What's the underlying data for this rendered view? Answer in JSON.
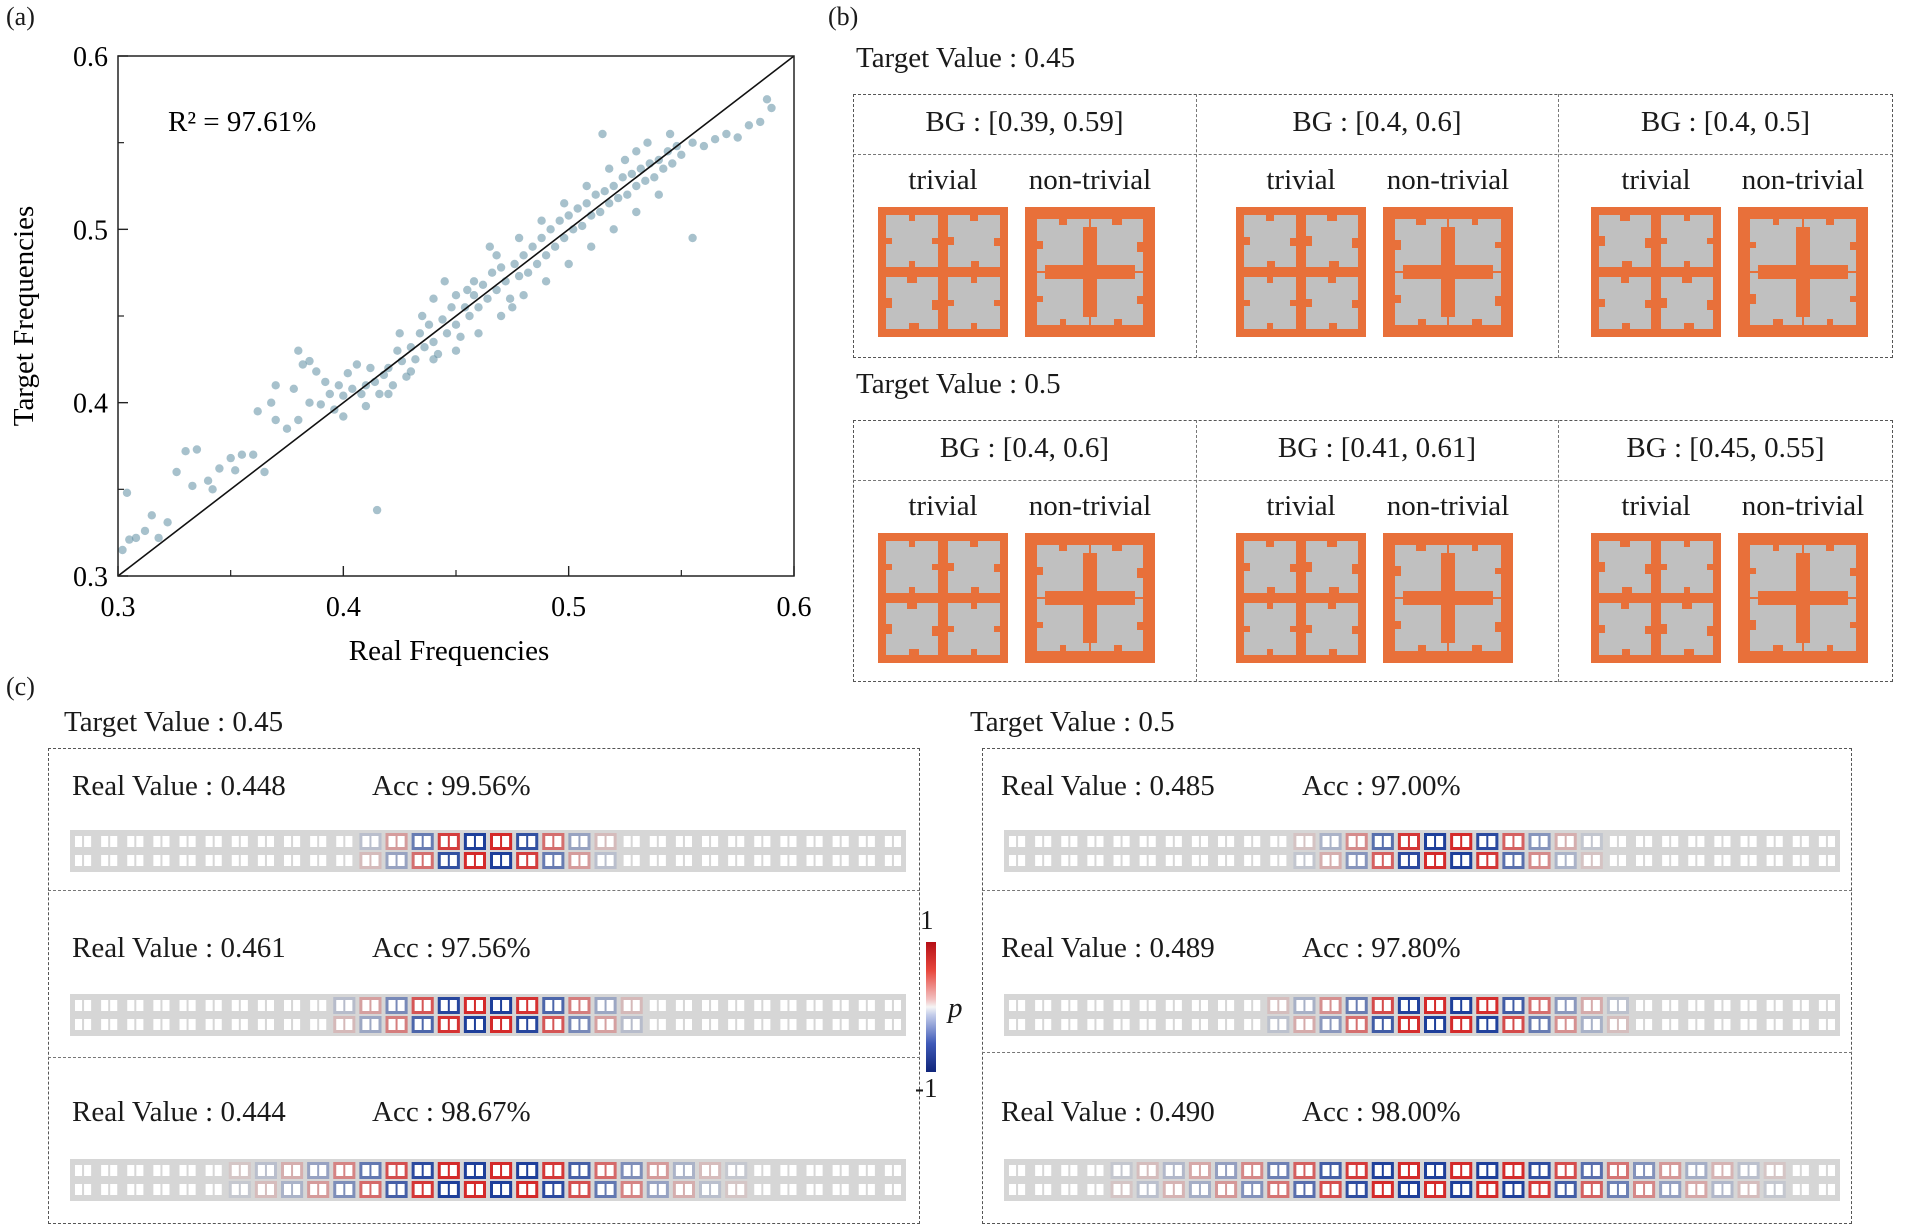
{
  "panel_labels": {
    "a": "(a)",
    "b": "(b)",
    "c": "(c)"
  },
  "colors": {
    "point": "#5e8ea2",
    "diag": "#111111",
    "cell_orange": "#e8703a",
    "cell_gray": "#c0c0c0",
    "field_red": "#d42a2a",
    "field_blue": "#1e3f9a"
  },
  "chart_data": {
    "type": "scatter",
    "title": "",
    "xlabel": "Real Frequencies",
    "ylabel": "Target Frequencies",
    "xlim": [
      0.3,
      0.6
    ],
    "ylim": [
      0.3,
      0.6
    ],
    "xticks": [
      0.3,
      0.4,
      0.5,
      0.6
    ],
    "yticks": [
      0.3,
      0.4,
      0.5,
      0.6
    ],
    "xtick_labels": [
      "0.3",
      "0.4",
      "0.5",
      "0.6"
    ],
    "ytick_labels": [
      "0.3",
      "0.4",
      "0.5",
      "0.6"
    ],
    "annotation": "R² = 97.61%",
    "reference_line": "y = x",
    "grid": false,
    "points": [
      [
        0.302,
        0.315
      ],
      [
        0.305,
        0.321
      ],
      [
        0.308,
        0.322
      ],
      [
        0.304,
        0.348
      ],
      [
        0.312,
        0.326
      ],
      [
        0.318,
        0.322
      ],
      [
        0.315,
        0.335
      ],
      [
        0.322,
        0.331
      ],
      [
        0.326,
        0.36
      ],
      [
        0.33,
        0.372
      ],
      [
        0.335,
        0.373
      ],
      [
        0.333,
        0.352
      ],
      [
        0.34,
        0.355
      ],
      [
        0.345,
        0.362
      ],
      [
        0.342,
        0.35
      ],
      [
        0.35,
        0.368
      ],
      [
        0.355,
        0.37
      ],
      [
        0.352,
        0.361
      ],
      [
        0.36,
        0.37
      ],
      [
        0.365,
        0.36
      ],
      [
        0.362,
        0.395
      ],
      [
        0.37,
        0.39
      ],
      [
        0.368,
        0.4
      ],
      [
        0.375,
        0.385
      ],
      [
        0.38,
        0.39
      ],
      [
        0.378,
        0.408
      ],
      [
        0.382,
        0.422
      ],
      [
        0.385,
        0.424
      ],
      [
        0.388,
        0.418
      ],
      [
        0.392,
        0.412
      ],
      [
        0.39,
        0.399
      ],
      [
        0.394,
        0.405
      ],
      [
        0.396,
        0.396
      ],
      [
        0.398,
        0.41
      ],
      [
        0.4,
        0.404
      ],
      [
        0.402,
        0.417
      ],
      [
        0.404,
        0.408
      ],
      [
        0.406,
        0.422
      ],
      [
        0.408,
        0.405
      ],
      [
        0.41,
        0.41
      ],
      [
        0.412,
        0.42
      ],
      [
        0.414,
        0.412
      ],
      [
        0.416,
        0.405
      ],
      [
        0.418,
        0.416
      ],
      [
        0.42,
        0.42
      ],
      [
        0.422,
        0.41
      ],
      [
        0.424,
        0.43
      ],
      [
        0.426,
        0.424
      ],
      [
        0.428,
        0.415
      ],
      [
        0.43,
        0.432
      ],
      [
        0.432,
        0.425
      ],
      [
        0.434,
        0.44
      ],
      [
        0.436,
        0.432
      ],
      [
        0.438,
        0.445
      ],
      [
        0.44,
        0.435
      ],
      [
        0.442,
        0.428
      ],
      [
        0.444,
        0.448
      ],
      [
        0.446,
        0.44
      ],
      [
        0.448,
        0.455
      ],
      [
        0.45,
        0.445
      ],
      [
        0.452,
        0.438
      ],
      [
        0.454,
        0.455
      ],
      [
        0.456,
        0.45
      ],
      [
        0.458,
        0.462
      ],
      [
        0.46,
        0.455
      ],
      [
        0.462,
        0.468
      ],
      [
        0.464,
        0.46
      ],
      [
        0.466,
        0.475
      ],
      [
        0.468,
        0.465
      ],
      [
        0.47,
        0.478
      ],
      [
        0.472,
        0.47
      ],
      [
        0.474,
        0.46
      ],
      [
        0.476,
        0.48
      ],
      [
        0.478,
        0.473
      ],
      [
        0.48,
        0.485
      ],
      [
        0.482,
        0.475
      ],
      [
        0.484,
        0.49
      ],
      [
        0.486,
        0.48
      ],
      [
        0.488,
        0.495
      ],
      [
        0.49,
        0.485
      ],
      [
        0.492,
        0.5
      ],
      [
        0.494,
        0.49
      ],
      [
        0.496,
        0.505
      ],
      [
        0.498,
        0.495
      ],
      [
        0.5,
        0.508
      ],
      [
        0.502,
        0.5
      ],
      [
        0.504,
        0.512
      ],
      [
        0.506,
        0.502
      ],
      [
        0.508,
        0.515
      ],
      [
        0.51,
        0.508
      ],
      [
        0.512,
        0.52
      ],
      [
        0.514,
        0.51
      ],
      [
        0.516,
        0.522
      ],
      [
        0.518,
        0.515
      ],
      [
        0.52,
        0.525
      ],
      [
        0.522,
        0.518
      ],
      [
        0.524,
        0.53
      ],
      [
        0.526,
        0.52
      ],
      [
        0.528,
        0.532
      ],
      [
        0.53,
        0.525
      ],
      [
        0.532,
        0.535
      ],
      [
        0.534,
        0.528
      ],
      [
        0.536,
        0.538
      ],
      [
        0.538,
        0.53
      ],
      [
        0.54,
        0.54
      ],
      [
        0.542,
        0.535
      ],
      [
        0.544,
        0.545
      ],
      [
        0.546,
        0.538
      ],
      [
        0.548,
        0.548
      ],
      [
        0.55,
        0.543
      ],
      [
        0.555,
        0.55
      ],
      [
        0.56,
        0.548
      ],
      [
        0.565,
        0.552
      ],
      [
        0.57,
        0.555
      ],
      [
        0.575,
        0.553
      ],
      [
        0.58,
        0.56
      ],
      [
        0.585,
        0.562
      ],
      [
        0.59,
        0.57
      ],
      [
        0.588,
        0.575
      ],
      [
        0.415,
        0.338
      ],
      [
        0.555,
        0.495
      ],
      [
        0.44,
        0.46
      ],
      [
        0.45,
        0.462
      ],
      [
        0.385,
        0.4
      ],
      [
        0.37,
        0.41
      ],
      [
        0.38,
        0.43
      ],
      [
        0.425,
        0.44
      ],
      [
        0.458,
        0.47
      ],
      [
        0.468,
        0.485
      ],
      [
        0.478,
        0.495
      ],
      [
        0.488,
        0.505
      ],
      [
        0.498,
        0.515
      ],
      [
        0.508,
        0.525
      ],
      [
        0.518,
        0.535
      ],
      [
        0.515,
        0.555
      ],
      [
        0.525,
        0.54
      ],
      [
        0.53,
        0.545
      ],
      [
        0.535,
        0.55
      ],
      [
        0.545,
        0.555
      ],
      [
        0.4,
        0.392
      ],
      [
        0.41,
        0.398
      ],
      [
        0.42,
        0.405
      ],
      [
        0.43,
        0.418
      ],
      [
        0.44,
        0.425
      ],
      [
        0.45,
        0.43
      ],
      [
        0.46,
        0.44
      ],
      [
        0.47,
        0.45
      ],
      [
        0.48,
        0.462
      ],
      [
        0.49,
        0.47
      ],
      [
        0.5,
        0.48
      ],
      [
        0.51,
        0.49
      ],
      [
        0.52,
        0.5
      ],
      [
        0.53,
        0.51
      ],
      [
        0.54,
        0.52
      ],
      [
        0.475,
        0.455
      ],
      [
        0.455,
        0.465
      ],
      [
        0.435,
        0.45
      ],
      [
        0.445,
        0.47
      ],
      [
        0.465,
        0.49
      ]
    ]
  },
  "panel_b": {
    "sections": [
      {
        "target": "Target Value : 0.45",
        "groups": [
          {
            "bg": "BG : [0.39, 0.59]",
            "trivial": "trivial",
            "nontrivial": "non-trivial"
          },
          {
            "bg": "BG : [0.4, 0.6]",
            "trivial": "trivial",
            "nontrivial": "non-trivial"
          },
          {
            "bg": "BG : [0.4, 0.5]",
            "trivial": "trivial",
            "nontrivial": "non-trivial"
          }
        ]
      },
      {
        "target": "Target Value : 0.5",
        "groups": [
          {
            "bg": "BG : [0.4, 0.6]",
            "trivial": "trivial",
            "nontrivial": "non-trivial"
          },
          {
            "bg": "BG : [0.41, 0.61]",
            "trivial": "trivial",
            "nontrivial": "non-trivial"
          },
          {
            "bg": "BG : [0.45, 0.55]",
            "trivial": "trivial",
            "nontrivial": "non-trivial"
          }
        ]
      }
    ]
  },
  "panel_c": {
    "left": {
      "target": "Target Value : 0.45",
      "rows": [
        {
          "real": "Real Value : 0.448",
          "acc": "Acc : 99.56%"
        },
        {
          "real": "Real Value : 0.461",
          "acc": "Acc : 97.56%"
        },
        {
          "real": "Real Value : 0.444",
          "acc": "Acc : 98.67%"
        }
      ]
    },
    "right": {
      "target": "Target Value : 0.5",
      "rows": [
        {
          "real": "Real Value : 0.485",
          "acc": "Acc : 97.00%"
        },
        {
          "real": "Real Value : 0.489",
          "acc": "Acc : 97.80%"
        },
        {
          "real": "Real Value : 0.490",
          "acc": "Acc : 98.00%"
        }
      ]
    },
    "colorbar": {
      "max": "1",
      "min": "-1",
      "label": "p"
    }
  }
}
